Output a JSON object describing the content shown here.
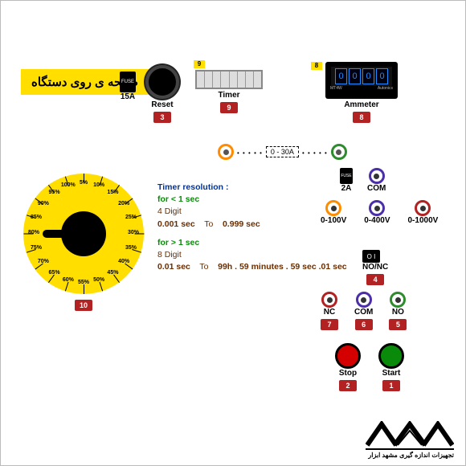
{
  "title": "صفحه ی روی دستگاه",
  "logo_text": "تجهیزات اندازه گیری مشهد ابزار",
  "fuse15": {
    "label": "15A",
    "text": "FUSE"
  },
  "reset": {
    "label": "Reset",
    "num": "3"
  },
  "timer": {
    "label": "Timer",
    "num": "9",
    "tag": "9",
    "digits": 8
  },
  "ammeter": {
    "label": "Ammeter",
    "num": "8",
    "tag": "8",
    "value": [
      "0",
      "0",
      "0",
      "0"
    ],
    "brand_l": "MT4W",
    "brand_r": "Autonics"
  },
  "range": {
    "text": "0 - 30A",
    "left_color": "#ff8c00",
    "right_color": "#2e8b2e"
  },
  "fuse2": {
    "label": "2A",
    "text": "FUSE"
  },
  "v_jacks": [
    {
      "label": "COM",
      "color": "#4b2ea8",
      "num": null,
      "has_label_above": true
    },
    {
      "label": "0-100V",
      "color": "#ff8c00",
      "num": null
    },
    {
      "label": "0-400V",
      "color": "#4b2ea8",
      "num": null
    },
    {
      "label": "0-1000V",
      "color": "#b22222",
      "num": null
    }
  ],
  "nonc_switch": {
    "label": "NO/NC",
    "num": "4",
    "text": "O I"
  },
  "bottom_jacks": [
    {
      "label": "NC",
      "color": "#b22222",
      "num": "7"
    },
    {
      "label": "COM",
      "color": "#4b2ea8",
      "num": "6"
    },
    {
      "label": "NO",
      "color": "#2e8b2e",
      "num": "5"
    }
  ],
  "buttons": {
    "stop": {
      "label": "Stop",
      "num": "2",
      "color": "#d40000"
    },
    "start": {
      "label": "Start",
      "num": "1",
      "color": "#0a8a0a"
    }
  },
  "dial": {
    "num": "10",
    "marks": [
      "5%",
      "10%",
      "15%",
      "20%",
      "25%",
      "30%",
      "35%",
      "40%",
      "45%",
      "50%",
      "55%",
      "60%",
      "65%",
      "70%",
      "75%",
      "80%",
      "85%",
      "90%",
      "95%",
      "100%"
    ]
  },
  "info": {
    "heading": "Timer resolution :",
    "l1": "for < 1 sec",
    "l2": "4 Digit",
    "l3a": "0.001 sec",
    "l3b": "To",
    "l3c": "0.999 sec",
    "l4": "for > 1 sec",
    "l5": "8 Digit",
    "l6a": "0.01 sec",
    "l6b": "To",
    "l6c": "99h . 59 minutes . 59 sec .01 sec"
  },
  "colors": {
    "yellow": "#ffde00",
    "red_badge": "#b22222",
    "blue_seg": "#1a8cff"
  }
}
